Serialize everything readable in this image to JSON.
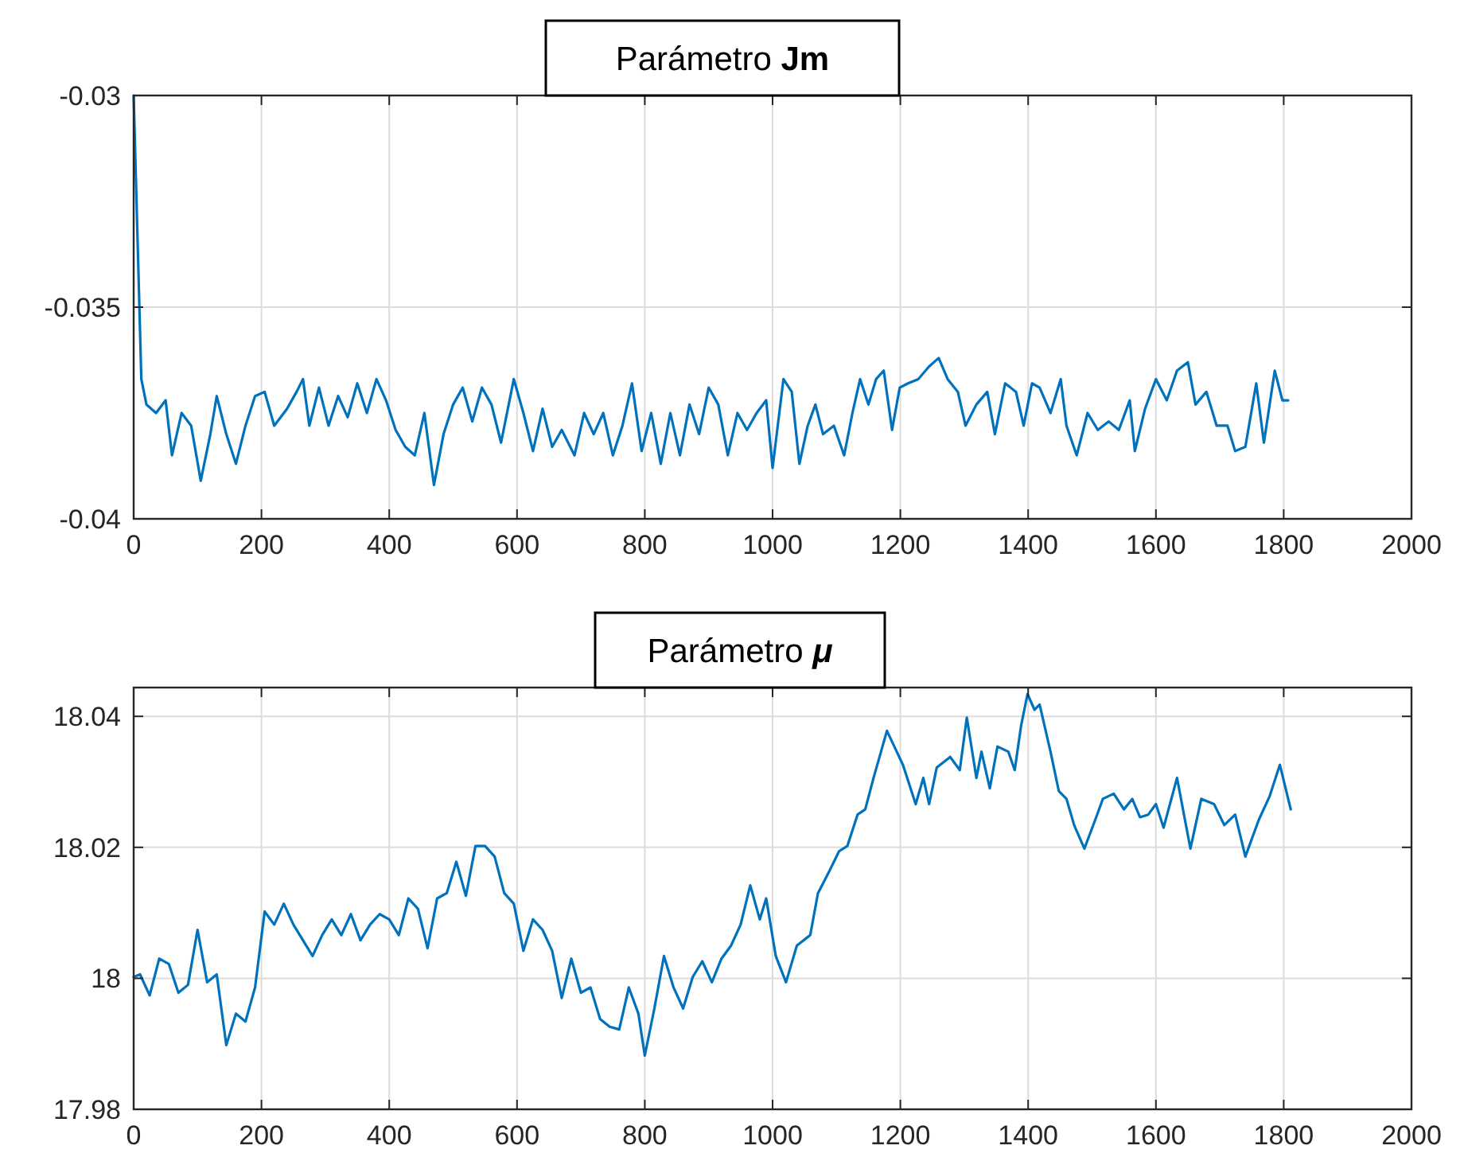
{
  "chart_data": [
    {
      "type": "line",
      "title": "Parámetro Jm",
      "xlim": [
        0,
        2000
      ],
      "xticks": [
        0,
        200,
        400,
        600,
        800,
        1000,
        1200,
        1400,
        1600,
        1800,
        2000
      ],
      "ylim": [
        -0.04,
        -0.03
      ],
      "yticks": [
        -0.04,
        -0.035,
        -0.03
      ],
      "grid": true,
      "x": [
        0,
        12,
        20,
        35,
        50,
        60,
        75,
        90,
        105,
        120,
        130,
        145,
        160,
        175,
        190,
        205,
        220,
        240,
        255,
        265,
        275,
        290,
        305,
        320,
        335,
        350,
        365,
        380,
        395,
        410,
        425,
        440,
        455,
        470,
        485,
        500,
        515,
        530,
        545,
        560,
        575,
        595,
        610,
        625,
        640,
        655,
        670,
        690,
        705,
        720,
        735,
        750,
        765,
        780,
        795,
        810,
        825,
        840,
        855,
        870,
        885,
        900,
        915,
        930,
        945,
        960,
        975,
        990,
        1000,
        1017,
        1030,
        1042,
        1055,
        1067,
        1079,
        1096,
        1112,
        1125,
        1137,
        1150,
        1162,
        1174,
        1187,
        1199,
        1212,
        1228,
        1245,
        1260,
        1274,
        1290,
        1302,
        1319,
        1336,
        1348,
        1364,
        1381,
        1393,
        1406,
        1418,
        1435,
        1451,
        1460,
        1476,
        1493,
        1509,
        1526,
        1542,
        1559,
        1567,
        1583,
        1600,
        1617,
        1633,
        1650,
        1662,
        1679,
        1695,
        1712,
        1724,
        1740,
        1757,
        1769,
        1786,
        1798,
        1807
      ],
      "series": [
        {
          "color": "#0072bd",
          "values": [
            -0.03,
            -0.0367,
            -0.0373,
            -0.0375,
            -0.0372,
            -0.0385,
            -0.0375,
            -0.0378,
            -0.0391,
            -0.038,
            -0.0371,
            -0.038,
            -0.0387,
            -0.0378,
            -0.0371,
            -0.037,
            -0.0378,
            -0.0374,
            -0.037,
            -0.0367,
            -0.0378,
            -0.0369,
            -0.0378,
            -0.0371,
            -0.0376,
            -0.0368,
            -0.0375,
            -0.0367,
            -0.0372,
            -0.0379,
            -0.0383,
            -0.0385,
            -0.0375,
            -0.0392,
            -0.038,
            -0.0373,
            -0.0369,
            -0.0377,
            -0.0369,
            -0.0373,
            -0.0382,
            -0.0367,
            -0.0375,
            -0.0384,
            -0.0374,
            -0.0383,
            -0.0379,
            -0.0385,
            -0.0375,
            -0.038,
            -0.0375,
            -0.0385,
            -0.0378,
            -0.0368,
            -0.0384,
            -0.0375,
            -0.0387,
            -0.0375,
            -0.0385,
            -0.0373,
            -0.038,
            -0.0369,
            -0.0373,
            -0.0385,
            -0.0375,
            -0.0379,
            -0.0375,
            -0.0372,
            -0.0388,
            -0.0367,
            -0.037,
            -0.0387,
            -0.0378,
            -0.0373,
            -0.038,
            -0.0378,
            -0.0385,
            -0.0375,
            -0.0367,
            -0.0373,
            -0.0367,
            -0.0365,
            -0.0379,
            -0.0369,
            -0.0368,
            -0.0367,
            -0.0364,
            -0.0362,
            -0.0367,
            -0.037,
            -0.0378,
            -0.0373,
            -0.037,
            -0.038,
            -0.0368,
            -0.037,
            -0.0378,
            -0.0368,
            -0.0369,
            -0.0375,
            -0.0367,
            -0.0378,
            -0.0385,
            -0.0375,
            -0.0379,
            -0.0377,
            -0.0379,
            -0.0372,
            -0.0384,
            -0.0374,
            -0.0367,
            -0.0372,
            -0.0365,
            -0.0363,
            -0.0373,
            -0.037,
            -0.0378,
            -0.0378,
            -0.0384,
            -0.0383,
            -0.0368,
            -0.0382,
            -0.0365,
            -0.0372,
            -0.0372
          ]
        }
      ]
    },
    {
      "type": "line",
      "title": "Parámetro μ",
      "xlim": [
        0,
        2000
      ],
      "xticks": [
        0,
        200,
        400,
        600,
        800,
        1000,
        1200,
        1400,
        1600,
        1800,
        2000
      ],
      "ylim": [
        17.98,
        18.0444
      ],
      "yticks": [
        17.98,
        18,
        18.02,
        18.04
      ],
      "grid": true,
      "x": [
        0,
        10,
        25,
        40,
        55,
        70,
        85,
        100,
        115,
        130,
        145,
        160,
        175,
        190,
        205,
        220,
        235,
        250,
        265,
        280,
        295,
        310,
        325,
        340,
        355,
        370,
        385,
        400,
        415,
        430,
        445,
        460,
        475,
        490,
        505,
        520,
        535,
        550,
        565,
        580,
        595,
        610,
        625,
        640,
        655,
        670,
        685,
        700,
        715,
        730,
        745,
        760,
        775,
        790,
        800,
        815,
        830,
        845,
        860,
        875,
        890,
        905,
        920,
        935,
        950,
        965,
        980,
        990,
        1005,
        1021,
        1038,
        1059,
        1071,
        1088,
        1104,
        1117,
        1133,
        1145,
        1158,
        1179,
        1204,
        1224,
        1236,
        1245,
        1257,
        1278,
        1293,
        1304,
        1319,
        1327,
        1340,
        1352,
        1369,
        1379,
        1389,
        1399,
        1410,
        1418,
        1435,
        1448,
        1460,
        1472,
        1488,
        1505,
        1517,
        1534,
        1550,
        1563,
        1575,
        1588,
        1600,
        1612,
        1633,
        1654,
        1671,
        1691,
        1707,
        1724,
        1740,
        1761,
        1778,
        1794,
        1811
      ],
      "series": [
        {
          "color": "#0072bd",
          "values": [
            18.0002,
            18.0006,
            17.9974,
            18.003,
            18.0022,
            17.9978,
            17.999,
            18.0074,
            17.9994,
            18.0006,
            17.9898,
            17.9946,
            17.9934,
            17.9986,
            18.0102,
            18.0082,
            18.0114,
            18.0082,
            18.0058,
            18.0034,
            18.0066,
            18.009,
            18.0066,
            18.0098,
            18.0058,
            18.0082,
            18.0098,
            18.009,
            18.0066,
            18.0122,
            18.0106,
            18.0046,
            18.0122,
            18.013,
            18.0178,
            18.0126,
            18.0202,
            18.0202,
            18.0186,
            18.013,
            18.0114,
            18.0042,
            18.009,
            18.0074,
            18.0042,
            17.997,
            18.003,
            17.9978,
            17.9986,
            17.9938,
            17.9926,
            17.9922,
            17.9986,
            17.9946,
            17.9882,
            17.9954,
            18.0034,
            17.9986,
            17.9954,
            18.0002,
            18.0026,
            17.9994,
            18.003,
            18.005,
            18.0082,
            18.0142,
            18.009,
            18.0122,
            18.0034,
            17.9994,
            18.005,
            18.0066,
            18.013,
            18.0162,
            18.0194,
            18.0202,
            18.025,
            18.0258,
            18.0306,
            18.0378,
            18.0326,
            18.0266,
            18.0306,
            18.0266,
            18.0322,
            18.0338,
            18.0318,
            18.0398,
            18.0306,
            18.0346,
            18.029,
            18.0354,
            18.0346,
            18.0318,
            18.0386,
            18.0434,
            18.041,
            18.0418,
            18.0346,
            18.0286,
            18.0274,
            18.0234,
            18.0198,
            18.0242,
            18.0274,
            18.0282,
            18.0258,
            18.0274,
            18.0246,
            18.025,
            18.0266,
            18.023,
            18.0306,
            18.0198,
            18.0274,
            18.0266,
            18.0234,
            18.025,
            18.0186,
            18.0242,
            18.0278,
            18.0326,
            18.0258
          ]
        }
      ]
    }
  ]
}
